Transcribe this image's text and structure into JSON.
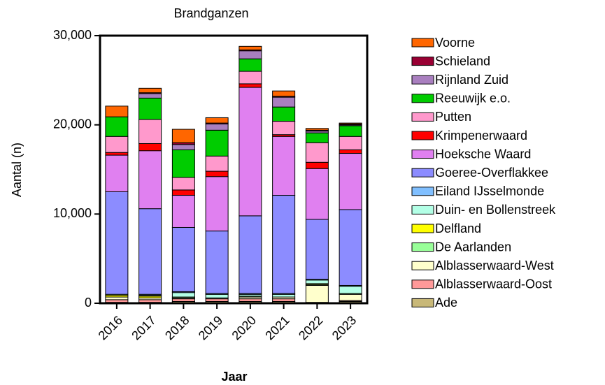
{
  "chart_data": {
    "type": "stacked_bar",
    "title": "Brandganzen",
    "x_label": "Jaar",
    "y_label": "Aantal (n)",
    "categories": [
      "2016",
      "2017",
      "2018",
      "2019",
      "2020",
      "2021",
      "2022",
      "2023"
    ],
    "ylim": [
      0,
      30000
    ],
    "yticks": [
      0,
      {
        "value": 10000,
        "label": "10,000"
      },
      {
        "value": 20000,
        "label": "20,000"
      },
      {
        "value": 30000,
        "label": "30,000"
      }
    ],
    "series": [
      {
        "name": "Ade",
        "color": "#c8b878",
        "values": [
          100,
          100,
          200,
          200,
          200,
          200,
          100,
          200
        ]
      },
      {
        "name": "Alblasserwaard-Oost",
        "color": "#ff9999",
        "values": [
          300,
          300,
          300,
          300,
          300,
          300,
          0,
          100
        ]
      },
      {
        "name": "Alblasserwaard-West",
        "color": "#ffffcc",
        "values": [
          300,
          200,
          100,
          100,
          200,
          200,
          1900,
          700
        ]
      },
      {
        "name": "De Aarlanden",
        "color": "#99ff99",
        "values": [
          0,
          0,
          100,
          0,
          100,
          0,
          100,
          100
        ]
      },
      {
        "name": "Delfland",
        "color": "#ffff00",
        "values": [
          200,
          200,
          0,
          0,
          0,
          0,
          100,
          0
        ]
      },
      {
        "name": "Duin- en Bollenstreek",
        "color": "#b3ffe6",
        "values": [
          100,
          100,
          500,
          400,
          200,
          300,
          400,
          800
        ]
      },
      {
        "name": "Eiland IJsselmonde",
        "color": "#80bfff",
        "values": [
          0,
          100,
          100,
          100,
          100,
          100,
          100,
          100
        ]
      },
      {
        "name": "Goeree-Overflakkee",
        "color": "#8c8cff",
        "values": [
          11500,
          9600,
          7200,
          7000,
          8700,
          11000,
          6700,
          8500
        ]
      },
      {
        "name": "Hoeksche Waard",
        "color": "#e080f0",
        "values": [
          4100,
          6500,
          3600,
          6100,
          14400,
          6600,
          5700,
          6300
        ]
      },
      {
        "name": "Krimpenerwaard",
        "color": "#ff0000",
        "values": [
          300,
          800,
          600,
          600,
          400,
          200,
          700,
          400
        ]
      },
      {
        "name": "Putten",
        "color": "#ff99cc",
        "values": [
          1800,
          2700,
          1400,
          1700,
          1400,
          1500,
          2200,
          1500
        ]
      },
      {
        "name": "Reeuwijk e.o.",
        "color": "#00cc00",
        "values": [
          2200,
          2400,
          3100,
          2900,
          1400,
          1600,
          1100,
          1200
        ]
      },
      {
        "name": "Rijnland Zuid",
        "color": "#a97fbf",
        "values": [
          0,
          500,
          600,
          700,
          900,
          1100,
          200,
          100
        ]
      },
      {
        "name": "Schieland",
        "color": "#990033",
        "values": [
          0,
          100,
          200,
          100,
          100,
          100,
          100,
          100
        ]
      },
      {
        "name": "Voorne",
        "color": "#ff6600",
        "values": [
          1200,
          500,
          1500,
          600,
          400,
          600,
          200,
          100
        ]
      }
    ]
  }
}
